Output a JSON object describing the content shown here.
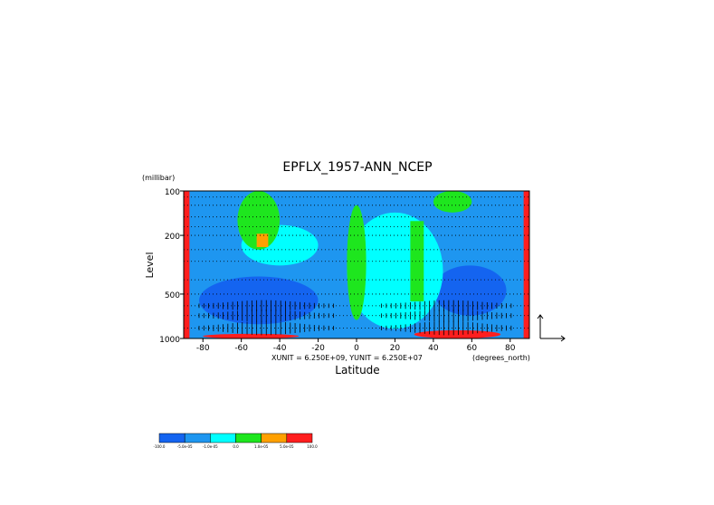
{
  "chart_data": {
    "type": "heatmap",
    "title": "EPFLX_1957-ANN_NCEP",
    "xlabel": "Latitude",
    "ylabel": "Level",
    "y_unit_label": "(millibar)",
    "x_unit_label": "(degrees_north)",
    "scale_text": "XUNIT = 6.250E+09, YUNIT = 6.250E+07",
    "x_ticks": [
      "-80",
      "-60",
      "-40",
      "-20",
      "0",
      "20",
      "40",
      "60",
      "80"
    ],
    "x_tick_values": [
      -80,
      -60,
      -40,
      -20,
      0,
      20,
      40,
      60,
      80
    ],
    "y_ticks": [
      "100",
      "200",
      "500",
      "1000"
    ],
    "y_tick_values": [
      100,
      200,
      500,
      1000
    ],
    "xlim": [
      -90,
      90
    ],
    "ylim": [
      1000,
      100
    ],
    "y_scale": "log",
    "grid": true,
    "colorbar": {
      "labels": [
        "-100.0",
        "-5.0e-05",
        "-1.0e-05",
        "0.0",
        "1.0e-05",
        "5.0e-05",
        "100.0"
      ],
      "colors": [
        "#1464F0",
        "#1E96F0",
        "#00FFFF",
        "#1EE61E",
        "#FFA000",
        "#FF1E1E"
      ]
    },
    "regions": [
      {
        "category": "-5.0e-05 to -1.0e-05",
        "color": "#1E96F0",
        "lat": [
          -90,
          90
        ],
        "p": [
          100,
          1000
        ]
      },
      {
        "category": "-100.0 to -5.0e-05",
        "color": "#1464F0",
        "lat": [
          -82,
          -20
        ],
        "p": [
          380,
          800
        ]
      },
      {
        "category": "-100.0 to -5.0e-05",
        "color": "#1464F0",
        "lat": [
          40,
          78
        ],
        "p": [
          320,
          700
        ]
      },
      {
        "category": "-1.0e-05 to 0.0",
        "color": "#00FFFF",
        "lat": [
          -60,
          -20
        ],
        "p": [
          170,
          320
        ]
      },
      {
        "category": "-1.0e-05 to 0.0",
        "color": "#00FFFF",
        "lat": [
          -5,
          45
        ],
        "p": [
          140,
          860
        ]
      },
      {
        "category": "0.0 to 1.0e-05",
        "color": "#1EE61E",
        "lat": [
          -62,
          -40
        ],
        "p": [
          100,
          250
        ]
      },
      {
        "category": "0.0 to 1.0e-05",
        "color": "#1EE61E",
        "lat": [
          -5,
          5
        ],
        "p": [
          125,
          750
        ]
      },
      {
        "category": "0.0 to 1.0e-05",
        "color": "#1EE61E",
        "lat": [
          28,
          35
        ],
        "p": [
          160,
          560
        ]
      },
      {
        "category": "0.0 to 1.0e-05",
        "color": "#1EE61E",
        "lat": [
          40,
          60
        ],
        "p": [
          100,
          140
        ]
      },
      {
        "category": "1.0e-05 to 5.0e-05",
        "color": "#FFA000",
        "lat": [
          -52,
          -46
        ],
        "p": [
          195,
          240
        ]
      },
      {
        "category": "5.0e-05 to 100.0",
        "color": "#FF1E1E",
        "lat": [
          -90,
          -87
        ],
        "p": [
          100,
          1000
        ]
      },
      {
        "category": "5.0e-05 to 100.0",
        "color": "#FF1E1E",
        "lat": [
          87,
          90
        ],
        "p": [
          100,
          1000
        ]
      },
      {
        "category": "5.0e-05 to 100.0",
        "color": "#FF1E1E",
        "lat": [
          -80,
          -30
        ],
        "p": [
          930,
          1000
        ]
      },
      {
        "category": "5.0e-05 to 100.0",
        "color": "#FF1E1E",
        "lat": [
          30,
          75
        ],
        "p": [
          880,
          1000
        ]
      }
    ]
  }
}
